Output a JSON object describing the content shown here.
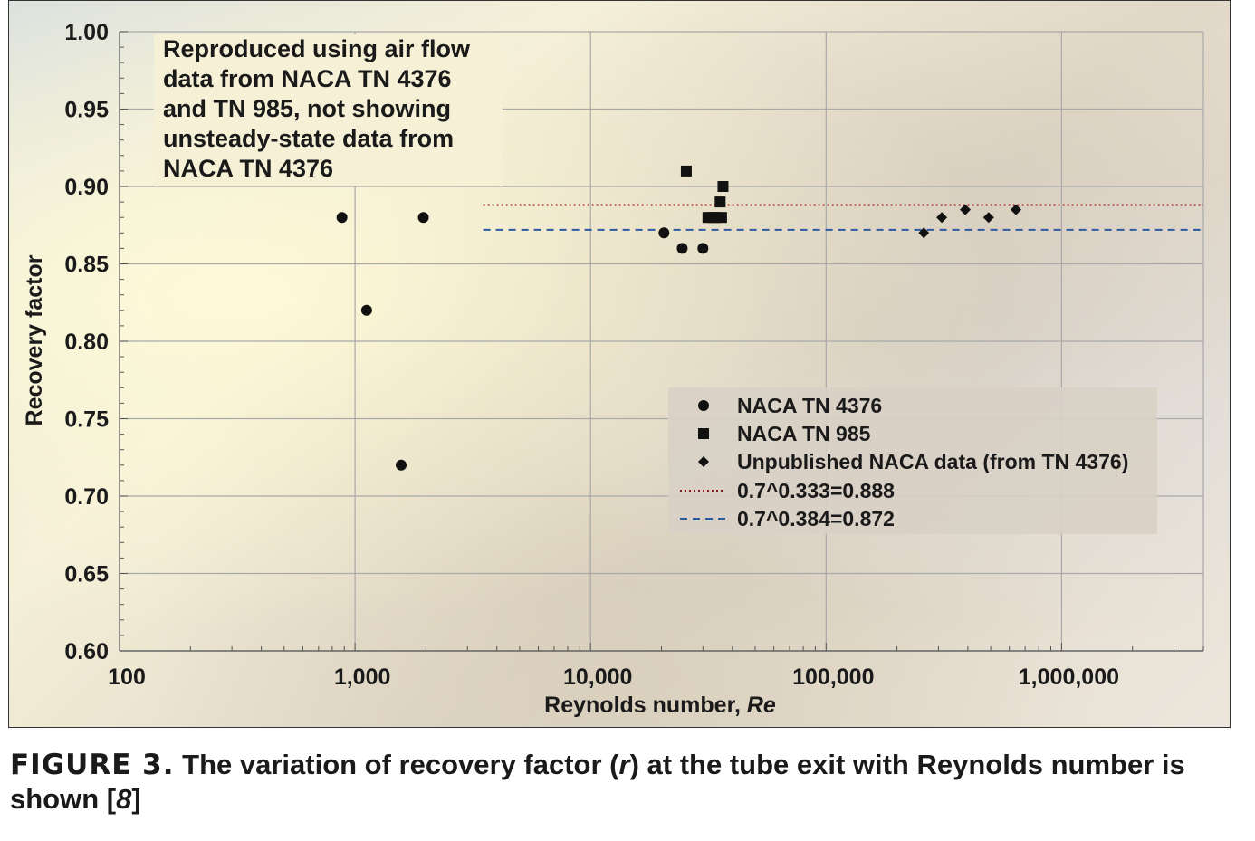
{
  "chart_data": {
    "type": "scatter",
    "xlabel_prefix": "Reynolds number, ",
    "xlabel_italic": "Re",
    "ylabel": "Recovery factor",
    "xscale": "log",
    "xlim": [
      100,
      4000000
    ],
    "ylim": [
      0.6,
      1.0
    ],
    "grid": true,
    "x_tick_values": [
      100,
      1000,
      10000,
      100000,
      1000000
    ],
    "x_tick_labels": [
      "100",
      "1,000",
      "10,000",
      "100,000",
      "1,000,000"
    ],
    "y_tick_values": [
      0.6,
      0.65,
      0.7,
      0.75,
      0.8,
      0.85,
      0.9,
      0.95,
      1.0
    ],
    "y_tick_labels": [
      "0.60",
      "0.65",
      "0.70",
      "0.75",
      "0.80",
      "0.85",
      "0.90",
      "0.95",
      "1.00"
    ],
    "legend_position": "center-right",
    "series": [
      {
        "name": "NACA TN 4376",
        "marker": "circle",
        "color": "#111111",
        "points": [
          [
            880,
            0.88
          ],
          [
            1120,
            0.82
          ],
          [
            1950,
            0.88
          ],
          [
            1570,
            0.72
          ],
          [
            20500,
            0.87
          ],
          [
            24500,
            0.86
          ],
          [
            30000,
            0.86
          ]
        ]
      },
      {
        "name": "NACA TN 985",
        "marker": "square",
        "color": "#111111",
        "points": [
          [
            25500,
            0.91
          ],
          [
            36500,
            0.9
          ],
          [
            35500,
            0.89
          ],
          [
            36000,
            0.88
          ],
          [
            31500,
            0.88
          ],
          [
            33000,
            0.88
          ],
          [
            34000,
            0.88
          ]
        ]
      },
      {
        "name": "Unpublished NACA data (from TN 4376)",
        "marker": "diamond",
        "color": "#111111",
        "points": [
          [
            260000,
            0.87
          ],
          [
            310000,
            0.88
          ],
          [
            390000,
            0.885
          ],
          [
            490000,
            0.88
          ],
          [
            640000,
            0.885
          ]
        ]
      }
    ],
    "reference_lines": [
      {
        "name": "0.7^0.333=0.888",
        "y": 0.888,
        "x_start": 3500,
        "style": "dotted",
        "color": "#8b1a1a"
      },
      {
        "name": "0.7^0.384=0.872",
        "y": 0.872,
        "x_start": 3500,
        "style": "dashed",
        "color": "#2c5aa0"
      }
    ],
    "annotation_lines": [
      "Reproduced using air flow",
      "data from NACA TN 4376",
      "and TN 985, not showing",
      "unsteady-state data from",
      "NACA TN 4376"
    ]
  },
  "caption": {
    "label": "FIGURE 3.",
    "text_before": " The variation of recovery factor (",
    "italic_symbol": "r",
    "text_middle": ") at the tube exit with Reynolds number is shown [",
    "italic_ref": "8",
    "text_after": "]"
  }
}
